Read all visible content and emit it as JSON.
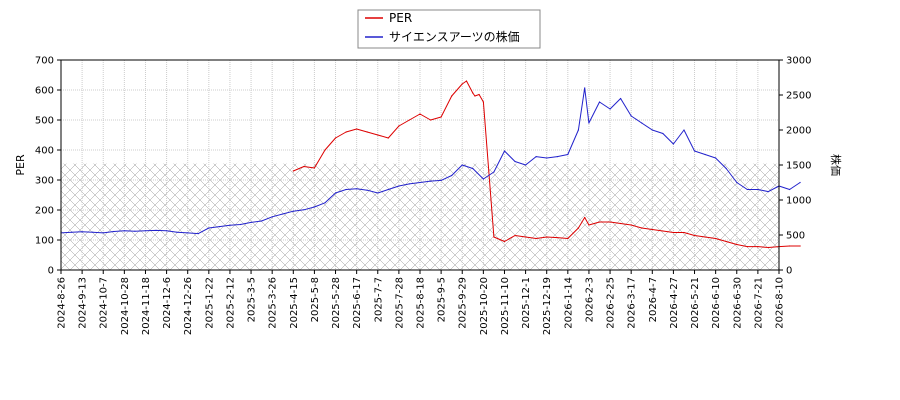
{
  "chart_data": {
    "type": "line",
    "legend": {
      "placement": "top-center",
      "entries": [
        "PER",
        "サイエンスアーツの株価"
      ]
    },
    "ylabel_left": "PER",
    "ylabel_right": "株価",
    "ylim_left": [
      0,
      700
    ],
    "ylim_right": [
      0,
      3000
    ],
    "yticks_left": [
      0,
      100,
      200,
      300,
      400,
      500,
      600,
      700
    ],
    "yticks_right": [
      0,
      500,
      1000,
      1500,
      2000,
      2500,
      3000
    ],
    "xticks": [
      "2024-8-26",
      "2024-9-13",
      "2024-10-7",
      "2024-10-28",
      "2024-11-18",
      "2024-12-6",
      "2024-12-26",
      "2025-1-22",
      "2025-2-12",
      "2025-3-5",
      "2025-3-26",
      "2025-4-15",
      "2025-5-8",
      "2025-5-28",
      "2025-6-17",
      "2025-7-7",
      "2025-7-28",
      "2025-8-18",
      "2025-9-5",
      "2025-9-29",
      "2025-10-20",
      "2025-11-10",
      "2025-12-1",
      "2025-12-19",
      "2026-1-14",
      "2026-2-3",
      "2026-2-25",
      "2026-3-17",
      "2026-4-7",
      "2026-4-27",
      "2026-5-21",
      "2026-6-10",
      "2026-6-30",
      "2026-7-21",
      "2026-8-10"
    ],
    "grid": true,
    "hatch_band_right": [
      0,
      1520
    ],
    "colors": {
      "per": "#dd0000",
      "price": "#2222cc"
    },
    "series": [
      {
        "name": "PER",
        "axis": "left",
        "x": [
          11,
          11.5,
          12,
          12.5,
          13,
          13.5,
          14,
          14.5,
          15,
          15.5,
          16,
          16.5,
          17,
          17.5,
          18,
          18.5,
          19,
          19.2,
          19.5,
          19.6,
          19.8,
          20,
          20.5,
          21,
          21.5,
          22,
          22.5,
          23,
          23.5,
          24,
          24.5,
          24.8,
          25,
          25.5,
          26,
          26.5,
          27,
          27.5,
          28,
          28.5,
          29,
          29.5,
          30,
          30.5,
          31,
          31.5,
          32,
          32.5,
          33,
          33.5,
          34,
          34.5,
          35
        ],
        "y": [
          330,
          345,
          340,
          400,
          440,
          460,
          470,
          460,
          450,
          440,
          480,
          500,
          520,
          500,
          510,
          580,
          620,
          630,
          590,
          580,
          585,
          560,
          110,
          95,
          115,
          110,
          105,
          110,
          108,
          105,
          140,
          175,
          150,
          160,
          160,
          155,
          150,
          140,
          135,
          130,
          125,
          125,
          115,
          110,
          105,
          95,
          85,
          78,
          78,
          75,
          78,
          80,
          80
        ]
      },
      {
        "name": "サイエンスアーツの株価",
        "axis": "right",
        "x": [
          0,
          0.5,
          1,
          1.5,
          2,
          2.5,
          3,
          3.5,
          4,
          4.5,
          5,
          5.5,
          6,
          6.5,
          7,
          7.5,
          8,
          8.5,
          9,
          9.5,
          10,
          10.5,
          11,
          11.5,
          12,
          12.5,
          13,
          13.5,
          14,
          14.5,
          15,
          15.5,
          16,
          16.5,
          17,
          17.5,
          18,
          18.5,
          19,
          19.5,
          20,
          20.5,
          21,
          21.5,
          22,
          22.5,
          23,
          23.5,
          24,
          24.5,
          24.8,
          25,
          25.5,
          26,
          26.5,
          27,
          27.5,
          28,
          28.5,
          29,
          29.5,
          30,
          30.5,
          31,
          31.5,
          32,
          32.5,
          33,
          33.5,
          34,
          34.5,
          35
        ],
        "y": [
          530,
          540,
          545,
          540,
          530,
          550,
          560,
          555,
          560,
          565,
          560,
          540,
          530,
          520,
          600,
          620,
          640,
          650,
          680,
          700,
          760,
          800,
          840,
          860,
          900,
          960,
          1100,
          1150,
          1160,
          1140,
          1100,
          1150,
          1200,
          1230,
          1250,
          1270,
          1280,
          1350,
          1500,
          1450,
          1300,
          1400,
          1700,
          1550,
          1500,
          1620,
          1600,
          1620,
          1650,
          2000,
          2600,
          2100,
          2400,
          2300,
          2450,
          2200,
          2100,
          2000,
          1950,
          1800,
          2000,
          1700,
          1650,
          1600,
          1450,
          1250,
          1150,
          1150,
          1120,
          1200,
          1150,
          1250
        ]
      }
    ]
  }
}
